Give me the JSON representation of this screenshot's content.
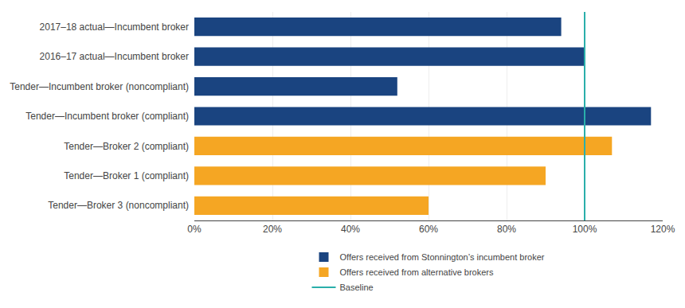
{
  "chart_data": {
    "type": "bar",
    "orientation": "horizontal",
    "categories": [
      "Tender—Broker 3 (noncompliant)",
      "Tender—Broker 1 (compliant)",
      "Tender—Broker 2 (compliant)",
      "Tender—Incumbent broker (compliant)",
      "Tender—Incumbent broker (noncompliant)",
      "2016–17 actual—Incumbent broker",
      "2017–18 actual—Incumbent broker"
    ],
    "values": [
      60,
      90,
      107,
      117,
      52,
      100,
      94
    ],
    "colors": [
      "#F5A623",
      "#F5A623",
      "#F5A623",
      "#1A4480",
      "#1A4480",
      "#1A4480",
      "#1A4480"
    ],
    "legend_entries": [
      {
        "name": "Offers received from Stonnington’s incumbent broker",
        "color": "#1A4480"
      },
      {
        "name": "Offers received from alternative brokers",
        "color": "#F5A623"
      }
    ],
    "baseline": {
      "value": 100,
      "name": "Baseline",
      "color": "#2AAFAA"
    },
    "xlim": [
      0,
      120
    ],
    "xticks": [
      {
        "value": 0,
        "label": "0%"
      },
      {
        "value": 20,
        "label": "20%"
      },
      {
        "value": 40,
        "label": "40%"
      },
      {
        "value": 60,
        "label": "60%"
      },
      {
        "value": 80,
        "label": "80%"
      },
      {
        "value": 100,
        "label": "100%"
      },
      {
        "value": 120,
        "label": "120%"
      }
    ],
    "grid": true,
    "legend": "bottom"
  }
}
